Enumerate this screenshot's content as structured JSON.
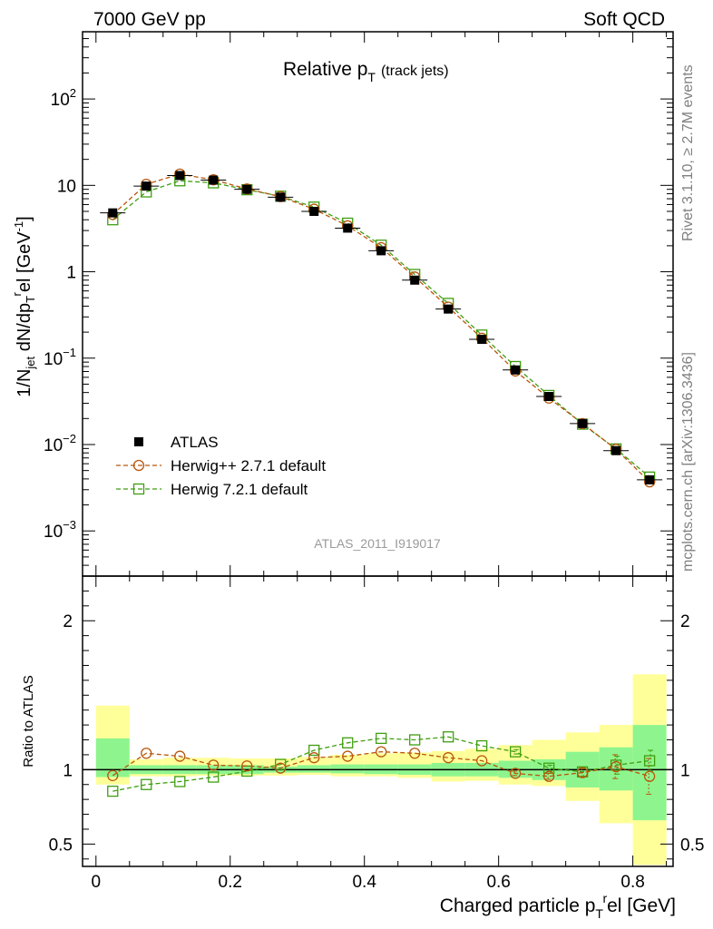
{
  "header": {
    "left": "7000 GeV pp",
    "right": "Soft QCD"
  },
  "side_text": {
    "rivet": "Rivet 3.1.10, ≥ 2.7M events",
    "mcplots": "mcplots.cern.ch [arXiv:1306.3436]"
  },
  "analysis_id": "ATLAS_2011_I919017",
  "colors": {
    "data": "#000000",
    "herwigpp": "#b8560c",
    "herwig7": "#3f9e10",
    "band_inner": "#8ef58e",
    "band_outer": "#ffff99"
  },
  "chart_data": [
    {
      "type": "scatter",
      "panel": "main",
      "title_main": "Relative p",
      "title_sub": "T",
      "title_extra": "(track jets)",
      "ylabel": "1/N_jet dN/dp_T^rel [GeV^-1]",
      "yscale": "log",
      "ylim": [
        0.0003,
        600
      ],
      "xlim": [
        -0.02,
        0.86
      ],
      "x": [
        0.025,
        0.075,
        0.125,
        0.175,
        0.225,
        0.275,
        0.325,
        0.375,
        0.425,
        0.475,
        0.525,
        0.575,
        0.625,
        0.675,
        0.725,
        0.775,
        0.825
      ],
      "y_ticks": [
        "10^-3",
        "10^-2",
        "10^-1",
        "1",
        "10",
        "10^2"
      ],
      "series": [
        {
          "name": "ATLAS",
          "marker": "filled-square",
          "values": [
            4.8,
            9.8,
            13.0,
            11.5,
            9.0,
            7.3,
            5.0,
            3.2,
            1.75,
            0.8,
            0.37,
            0.165,
            0.073,
            0.036,
            0.0175,
            0.0085,
            0.0039
          ]
        },
        {
          "name": "Herwig++ 2.7.1 default",
          "marker": "open-circle",
          "values": [
            4.6,
            10.3,
            13.5,
            11.6,
            9.1,
            7.4,
            5.3,
            3.4,
            1.9,
            0.87,
            0.39,
            0.17,
            0.071,
            0.0345,
            0.0175,
            0.0088,
            0.0037
          ]
        },
        {
          "name": "Herwig 7.2.1 default",
          "marker": "open-square",
          "values": [
            4.0,
            8.4,
            11.3,
            10.7,
            8.9,
            7.5,
            5.6,
            3.65,
            2.03,
            0.93,
            0.43,
            0.185,
            0.08,
            0.037,
            0.0172,
            0.0089,
            0.0042
          ]
        }
      ],
      "legend": [
        "ATLAS",
        "Herwig++ 2.7.1 default",
        "Herwig 7.2.1 default"
      ],
      "legend_position": "bottom-left"
    },
    {
      "type": "scatter",
      "panel": "ratio",
      "ylabel": "Ratio to ATLAS",
      "xlabel": "Charged particle p_T^rel [GeV]",
      "ylim": [
        0.35,
        2.3
      ],
      "xlim": [
        -0.02,
        0.86
      ],
      "x_ticks": [
        "0",
        "0.2",
        "0.4",
        "0.6",
        "0.8"
      ],
      "y_ticks": [
        "0.5",
        "1",
        "2"
      ],
      "bin_edges": [
        0.0,
        0.05,
        0.1,
        0.15,
        0.2,
        0.25,
        0.3,
        0.35,
        0.4,
        0.45,
        0.5,
        0.55,
        0.6,
        0.65,
        0.7,
        0.75,
        0.8,
        0.85
      ],
      "band_inner": {
        "low": [
          0.95,
          0.97,
          0.97,
          0.97,
          0.97,
          0.98,
          0.98,
          0.975,
          0.97,
          0.965,
          0.955,
          0.955,
          0.945,
          0.93,
          0.88,
          0.86,
          0.66
        ],
        "high": [
          1.21,
          1.03,
          1.03,
          1.03,
          1.03,
          1.02,
          1.03,
          1.035,
          1.035,
          1.035,
          1.045,
          1.045,
          1.06,
          1.07,
          1.12,
          1.15,
          1.3
        ]
      },
      "band_outer": {
        "low": [
          0.9,
          0.955,
          0.955,
          0.96,
          0.96,
          0.96,
          0.965,
          0.955,
          0.955,
          0.945,
          0.92,
          0.925,
          0.9,
          0.89,
          0.79,
          0.64,
          0.36
        ],
        "high": [
          1.43,
          1.07,
          1.08,
          1.08,
          1.075,
          1.075,
          1.085,
          1.1,
          1.11,
          1.115,
          1.125,
          1.14,
          1.165,
          1.2,
          1.25,
          1.3,
          1.64
        ]
      },
      "series": [
        {
          "name": "Herwig++ 2.7.1 default",
          "values": [
            0.96,
            1.11,
            1.09,
            1.03,
            1.025,
            1.01,
            1.08,
            1.09,
            1.12,
            1.11,
            1.08,
            1.06,
            0.975,
            0.955,
            0.98,
            1.02,
            0.955
          ],
          "err": [
            0,
            0,
            0,
            0,
            0,
            0,
            0,
            0,
            0,
            0,
            0,
            0,
            0.015,
            0.02,
            0.03,
            0.08,
            0.12
          ]
        },
        {
          "name": "Herwig 7.2.1 default",
          "values": [
            0.855,
            0.9,
            0.92,
            0.95,
            0.99,
            1.035,
            1.13,
            1.18,
            1.21,
            1.2,
            1.22,
            1.16,
            1.12,
            1.01,
            0.985,
            1.03,
            1.06
          ],
          "err": [
            0,
            0,
            0,
            0,
            0,
            0,
            0,
            0,
            0,
            0,
            0,
            0,
            0.015,
            0.02,
            0.03,
            0.06,
            0.07
          ]
        }
      ]
    }
  ]
}
